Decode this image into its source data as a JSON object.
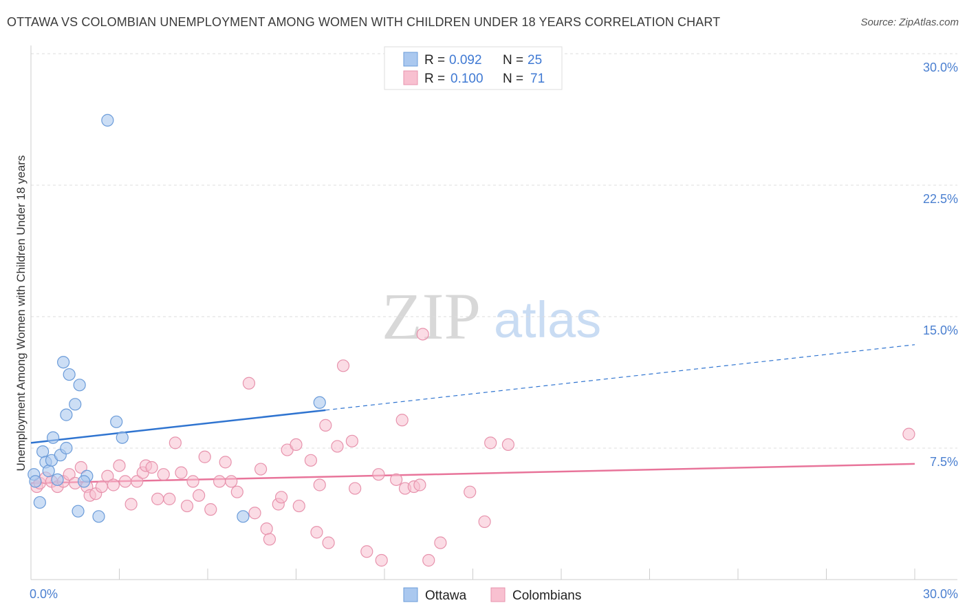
{
  "title": "OTTAWA VS COLOMBIAN UNEMPLOYMENT AMONG WOMEN WITH CHILDREN UNDER 18 YEARS CORRELATION CHART",
  "source": "Source: ZipAtlas.com",
  "watermark": {
    "zip": "ZIP",
    "atlas": "atlas"
  },
  "colors": {
    "ottawa_fill": "#aac8ef",
    "ottawa_stroke": "#6a9bd9",
    "ottawa_line": "#2f74d0",
    "colombians_fill": "#f8c0d0",
    "colombians_stroke": "#e792ac",
    "colombians_line": "#e8749a",
    "tick_text": "#4a7fd0",
    "grid": "#dddddd"
  },
  "legend": {
    "rows": [
      {
        "r_label": "R =",
        "r_value": "0.092",
        "n_label": "N =",
        "n_value": "25"
      },
      {
        "r_label": "R =",
        "r_value": "0.100",
        "n_label": "N =",
        "n_value": "71"
      }
    ]
  },
  "bottom_legend": {
    "items": [
      "Ottawa",
      "Colombians"
    ]
  },
  "chart_data": {
    "type": "scatter",
    "title": "OTTAWA VS COLOMBIAN UNEMPLOYMENT AMONG WOMEN WITH CHILDREN UNDER 18 YEARS CORRELATION CHART",
    "xlabel": "",
    "ylabel": "Unemployment Among Women with Children Under 18 years",
    "xlim": [
      0,
      30
    ],
    "ylim": [
      0,
      30
    ],
    "x_tick_labels": [
      "0.0%",
      "30.0%"
    ],
    "y_tick_labels": [
      "7.5%",
      "15.0%",
      "22.5%",
      "30.0%"
    ],
    "y_ticks": [
      7.5,
      15.0,
      22.5,
      30.0
    ],
    "grid": true,
    "legend_position": "top-center",
    "series": [
      {
        "name": "Ottawa",
        "r": 0.092,
        "n": 25,
        "trend": {
          "x0": 0.0,
          "y0": 7.8,
          "x1": 30.0,
          "y1": 13.4,
          "solid_until_x": 10.0
        },
        "points": [
          [
            0.1,
            6.0
          ],
          [
            0.15,
            5.6
          ],
          [
            0.3,
            4.4
          ],
          [
            0.4,
            7.3
          ],
          [
            0.5,
            6.7
          ],
          [
            0.6,
            6.2
          ],
          [
            0.7,
            6.8
          ],
          [
            0.75,
            8.1
          ],
          [
            0.9,
            5.7
          ],
          [
            1.0,
            7.1
          ],
          [
            1.1,
            12.4
          ],
          [
            1.2,
            9.4
          ],
          [
            1.2,
            7.5
          ],
          [
            1.3,
            11.7
          ],
          [
            1.5,
            10.0
          ],
          [
            1.6,
            3.9
          ],
          [
            1.65,
            11.1
          ],
          [
            1.9,
            5.9
          ],
          [
            1.8,
            5.6
          ],
          [
            2.3,
            3.6
          ],
          [
            2.6,
            26.2
          ],
          [
            2.9,
            9.0
          ],
          [
            3.1,
            8.1
          ],
          [
            7.2,
            3.6
          ],
          [
            9.8,
            10.1
          ]
        ]
      },
      {
        "name": "Colombians",
        "r": 0.1,
        "n": 71,
        "trend": {
          "x0": 0.0,
          "y0": 5.5,
          "x1": 30.0,
          "y1": 6.6
        },
        "points": [
          [
            0.2,
            5.3
          ],
          [
            0.3,
            5.5
          ],
          [
            0.5,
            5.8
          ],
          [
            0.7,
            5.6
          ],
          [
            0.9,
            5.3
          ],
          [
            1.1,
            5.6
          ],
          [
            1.3,
            6.0
          ],
          [
            1.5,
            5.5
          ],
          [
            1.7,
            6.4
          ],
          [
            1.9,
            5.3
          ],
          [
            2.0,
            4.8
          ],
          [
            2.2,
            4.9
          ],
          [
            2.4,
            5.3
          ],
          [
            2.6,
            5.9
          ],
          [
            2.8,
            5.4
          ],
          [
            3.0,
            6.5
          ],
          [
            3.2,
            5.6
          ],
          [
            3.4,
            4.3
          ],
          [
            3.6,
            5.6
          ],
          [
            3.8,
            6.1
          ],
          [
            3.9,
            6.5
          ],
          [
            4.1,
            6.4
          ],
          [
            4.3,
            4.6
          ],
          [
            4.5,
            6.0
          ],
          [
            4.7,
            4.6
          ],
          [
            4.9,
            7.8
          ],
          [
            5.1,
            6.1
          ],
          [
            5.3,
            4.2
          ],
          [
            5.5,
            5.6
          ],
          [
            5.7,
            4.8
          ],
          [
            5.9,
            7.0
          ],
          [
            6.1,
            4.0
          ],
          [
            6.4,
            5.6
          ],
          [
            6.6,
            6.7
          ],
          [
            6.8,
            5.6
          ],
          [
            7.0,
            5.0
          ],
          [
            7.4,
            11.2
          ],
          [
            7.6,
            3.8
          ],
          [
            7.8,
            6.3
          ],
          [
            8.0,
            2.9
          ],
          [
            8.1,
            2.3
          ],
          [
            8.4,
            4.3
          ],
          [
            8.5,
            4.7
          ],
          [
            8.7,
            7.4
          ],
          [
            9.0,
            7.7
          ],
          [
            9.1,
            4.2
          ],
          [
            9.5,
            6.8
          ],
          [
            9.7,
            2.7
          ],
          [
            9.8,
            5.4
          ],
          [
            10.0,
            8.8
          ],
          [
            10.1,
            2.1
          ],
          [
            10.4,
            7.6
          ],
          [
            10.6,
            12.2
          ],
          [
            10.9,
            7.9
          ],
          [
            11.0,
            5.2
          ],
          [
            11.4,
            1.6
          ],
          [
            11.8,
            6.0
          ],
          [
            11.9,
            1.1
          ],
          [
            12.4,
            5.7
          ],
          [
            12.6,
            9.1
          ],
          [
            12.7,
            5.2
          ],
          [
            13.0,
            5.3
          ],
          [
            13.2,
            5.4
          ],
          [
            13.3,
            14.0
          ],
          [
            13.5,
            1.1
          ],
          [
            13.9,
            2.1
          ],
          [
            14.9,
            5.0
          ],
          [
            15.4,
            3.3
          ],
          [
            15.6,
            7.8
          ],
          [
            16.2,
            7.7
          ],
          [
            29.8,
            8.3
          ]
        ]
      }
    ]
  }
}
